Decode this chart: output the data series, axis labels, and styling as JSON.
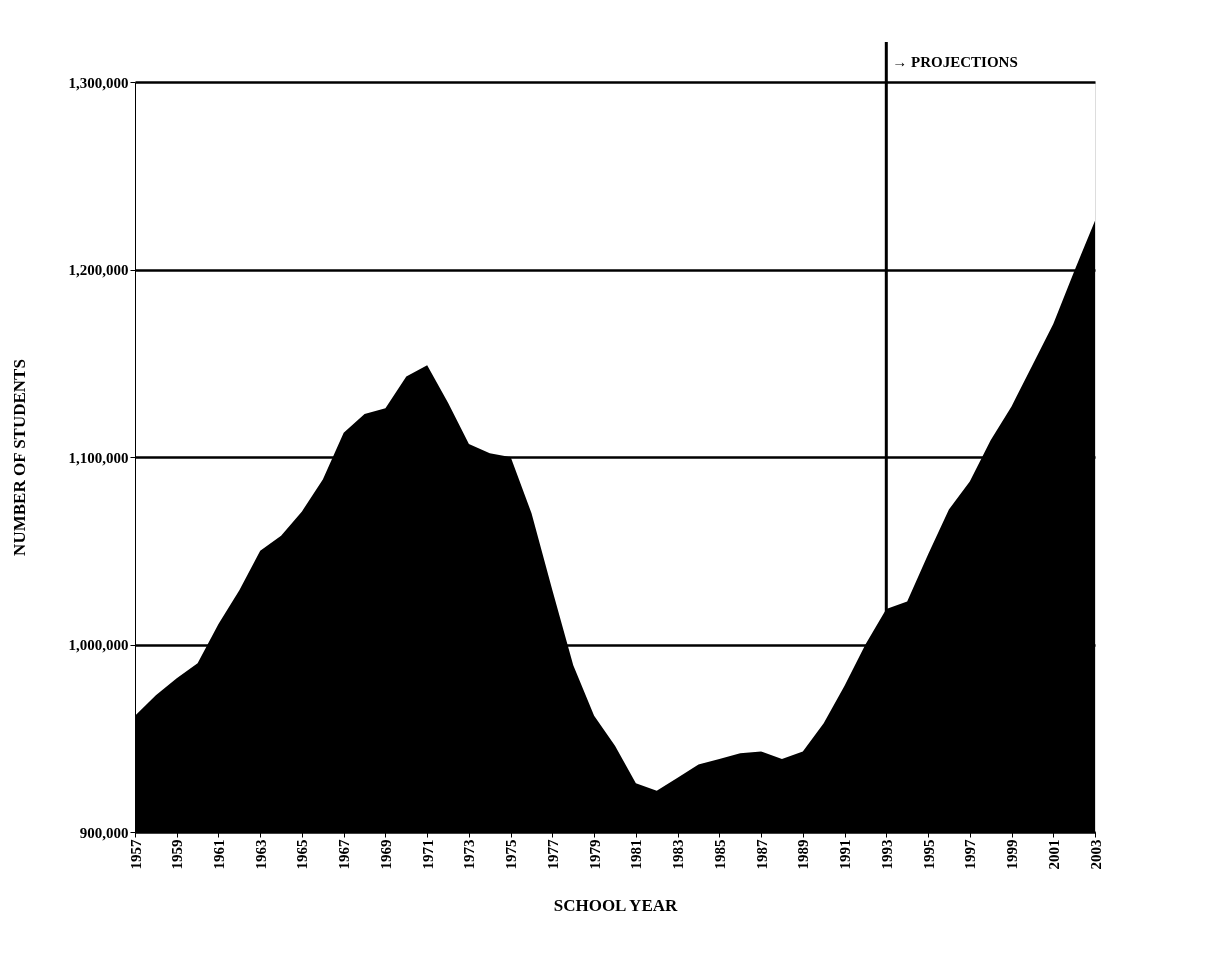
{
  "chart_data": {
    "type": "area",
    "xlabel": "SCHOOL YEAR",
    "ylabel": "NUMBER OF STUDENTS",
    "x": [
      1957,
      1958,
      1959,
      1960,
      1961,
      1962,
      1963,
      1964,
      1965,
      1966,
      1967,
      1968,
      1969,
      1970,
      1971,
      1972,
      1973,
      1974,
      1975,
      1976,
      1977,
      1978,
      1979,
      1980,
      1981,
      1982,
      1983,
      1984,
      1985,
      1986,
      1987,
      1988,
      1989,
      1990,
      1991,
      1992,
      1993,
      1994,
      1995,
      1996,
      1997,
      1998,
      1999,
      2000,
      2001,
      2002,
      2003
    ],
    "series": [
      {
        "color": "#000000",
        "values": [
          962000,
          973000,
          982000,
          990000,
          1011000,
          1029000,
          1050000,
          1058000,
          1071000,
          1088000,
          1113000,
          1123000,
          1126000,
          1143000,
          1149000,
          1129000,
          1107000,
          1102000,
          1100000,
          1070000,
          1029000,
          989000,
          962000,
          946000,
          926000,
          922000,
          929000,
          936000,
          939000,
          942000,
          943000,
          939000,
          943000,
          958000,
          978000,
          1000000,
          1019000,
          1023000,
          1048000,
          1072000,
          1087000,
          1109000,
          1127000,
          1149000,
          1171000,
          1199000,
          1226000
        ]
      }
    ],
    "xlim": [
      1957,
      2003
    ],
    "xticks": [
      1957,
      1959,
      1961,
      1963,
      1965,
      1967,
      1969,
      1971,
      1973,
      1975,
      1977,
      1979,
      1981,
      1983,
      1985,
      1987,
      1989,
      1991,
      1993,
      1995,
      1997,
      1999,
      2001,
      2003
    ],
    "ylim": [
      900000,
      1300000
    ],
    "yticks": [
      {
        "value": 900000,
        "label": "900,000"
      },
      {
        "value": 1000000,
        "label": "1,000,000"
      },
      {
        "value": 1100000,
        "label": "1,100,000"
      },
      {
        "value": 1200000,
        "label": "1,200,000"
      },
      {
        "value": 1300000,
        "label": "1,300,000"
      }
    ],
    "grid": "y",
    "ref_lines": [
      {
        "axis": "x",
        "value": 1993,
        "label": "→ PROJECTIONS",
        "color": "#000000"
      }
    ]
  }
}
